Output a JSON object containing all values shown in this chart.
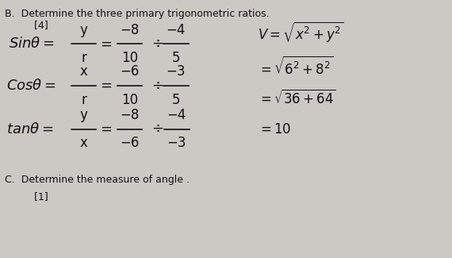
{
  "background_color": "#ccc9c4",
  "text_color": "#111111",
  "header_b": "B.  Determine the three primary trigonometric ratios.",
  "mark_b": "     [4]",
  "header_c": "C.  Determine the measure of angle .",
  "mark_c": "     [1]",
  "xlim": [
    0,
    10
  ],
  "ylim": [
    0,
    10
  ]
}
